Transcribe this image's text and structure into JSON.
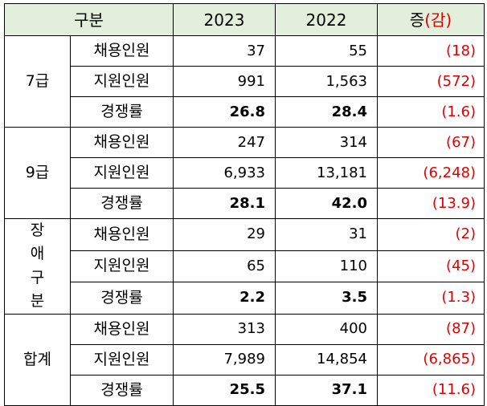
{
  "header": {
    "category": "구분",
    "year_2023": "2023",
    "year_2022": "2022",
    "change_prefix": "증",
    "change_suffix": "(감)"
  },
  "groups": [
    {
      "label": "7급",
      "rows": [
        {
          "metric": "채용인원",
          "y2023": "37",
          "y2022": "55",
          "diff": "(18)"
        },
        {
          "metric": "지원인원",
          "y2023": "991",
          "y2022": "1,563",
          "diff": "(572)"
        },
        {
          "metric": "경쟁률",
          "y2023": "26.8",
          "y2022": "28.4",
          "diff": "(1.6)"
        }
      ]
    },
    {
      "label": "9급",
      "rows": [
        {
          "metric": "채용인원",
          "y2023": "247",
          "y2022": "314",
          "diff": "(67)"
        },
        {
          "metric": "지원인원",
          "y2023": "6,933",
          "y2022": "13,181",
          "diff": "(6,248)"
        },
        {
          "metric": "경쟁률",
          "y2023": "28.1",
          "y2022": "42.0",
          "diff": "(13.9)"
        }
      ]
    },
    {
      "label": "장애 구분",
      "rows": [
        {
          "metric": "채용인원",
          "y2023": "29",
          "y2022": "31",
          "diff": "(2)"
        },
        {
          "metric": "지원인원",
          "y2023": "65",
          "y2022": "110",
          "diff": "(45)"
        },
        {
          "metric": "경쟁률",
          "y2023": "2.2",
          "y2022": "3.5",
          "diff": "(1.3)"
        }
      ]
    },
    {
      "label": "합계",
      "rows": [
        {
          "metric": "채용인원",
          "y2023": "313",
          "y2022": "400",
          "diff": "(87)"
        },
        {
          "metric": "지원인원",
          "y2023": "7,989",
          "y2022": "14,854",
          "diff": "(6,865)"
        },
        {
          "metric": "경쟁률",
          "y2023": "25.5",
          "y2022": "37.1",
          "diff": "(11.6)"
        }
      ]
    }
  ],
  "colors": {
    "header_bg": "#e2efda",
    "negative_text": "#e00000",
    "border": "#000000"
  }
}
